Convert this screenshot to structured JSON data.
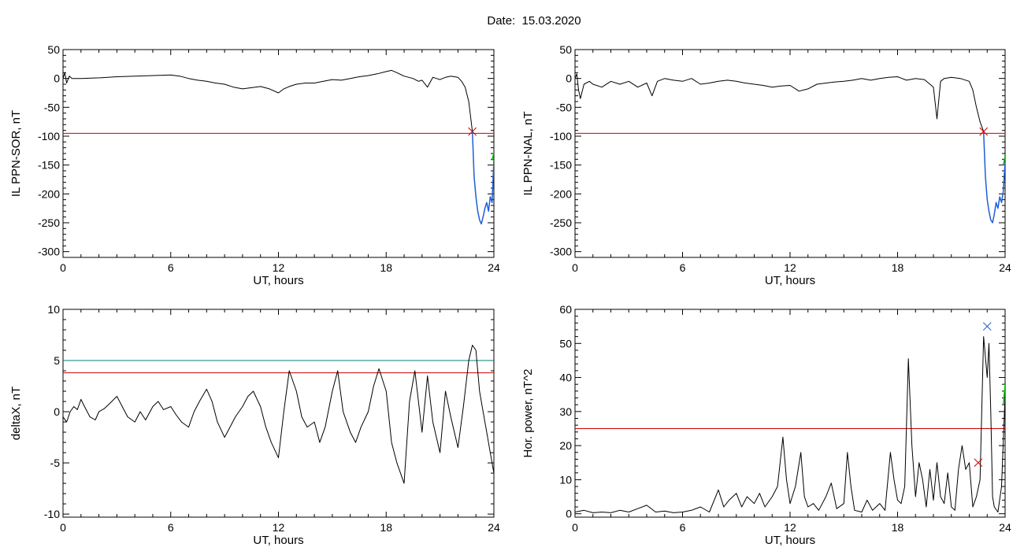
{
  "figure": {
    "title": "Date:  15.03.2020"
  },
  "chart_data": [
    {
      "type": "line",
      "panel": "top-left",
      "xlabel": "UT, hours",
      "ylabel": "IL PPN-SOR, nT",
      "xlim": [
        0,
        24
      ],
      "ylim": [
        -310,
        50
      ],
      "xticks": [
        0,
        6,
        12,
        18,
        24
      ],
      "yticks": [
        50,
        0,
        -50,
        -100,
        -150,
        -200,
        -250,
        -300
      ],
      "threshold": {
        "value": -95,
        "color": "#cc0000"
      },
      "marker": {
        "x": 22.8,
        "y": -92,
        "color": "#cc0000"
      },
      "series": [
        {
          "color": "#000000",
          "x": [
            0,
            0.1,
            0.2,
            0.35,
            0.5,
            1,
            2,
            3,
            4,
            5,
            6,
            6.5,
            7,
            7.5,
            8,
            8.5,
            9,
            9.5,
            10,
            10.5,
            11,
            11.5,
            12,
            12.3,
            12.6,
            13,
            13.5,
            14,
            14.5,
            15,
            15.5,
            16,
            16.5,
            17,
            17.5,
            18,
            18.3,
            18.6,
            19,
            19.5,
            19.8,
            20,
            20.3,
            20.6,
            20.8,
            21,
            21.3,
            21.6,
            22,
            22.2,
            22.4,
            22.6,
            22.8
          ],
          "y": [
            0,
            10,
            -8,
            4,
            0,
            0,
            1,
            3,
            4,
            5,
            6,
            4,
            0,
            -3,
            -5,
            -8,
            -10,
            -15,
            -18,
            -16,
            -14,
            -18,
            -25,
            -18,
            -14,
            -10,
            -8,
            -8,
            -5,
            -2,
            -3,
            0,
            3,
            5,
            8,
            12,
            14,
            10,
            4,
            0,
            -5,
            -3,
            -15,
            2,
            0,
            -2,
            2,
            4,
            2,
            -5,
            -15,
            -40,
            -92
          ]
        },
        {
          "color": "#1f5fd6",
          "x": [
            22.8,
            22.9,
            23.0,
            23.1,
            23.2,
            23.3,
            23.4,
            23.5,
            23.6,
            23.7,
            23.8,
            23.9,
            24.0
          ],
          "y": [
            -92,
            -170,
            -205,
            -230,
            -245,
            -252,
            -240,
            -225,
            -215,
            -230,
            -205,
            -215,
            -140
          ]
        },
        {
          "color": "#00cc00",
          "x": [
            23.9,
            24.0
          ],
          "y": [
            -142,
            -128
          ]
        }
      ]
    },
    {
      "type": "line",
      "panel": "top-right",
      "xlabel": "UT, hours",
      "ylabel": "IL PPN-NAL, nT",
      "xlim": [
        0,
        24
      ],
      "ylim": [
        -310,
        50
      ],
      "xticks": [
        0,
        6,
        12,
        18,
        24
      ],
      "yticks": [
        50,
        0,
        -50,
        -100,
        -150,
        -200,
        -250,
        -300
      ],
      "threshold": {
        "value": -95,
        "color": "#cc0000"
      },
      "marker": {
        "x": 22.8,
        "y": -92,
        "color": "#cc0000"
      },
      "series": [
        {
          "color": "#000000",
          "x": [
            0,
            0.1,
            0.2,
            0.3,
            0.5,
            0.8,
            1,
            1.5,
            2,
            2.5,
            3,
            3.5,
            4,
            4.3,
            4.6,
            5,
            5.5,
            6,
            6.5,
            7,
            7.5,
            8,
            8.5,
            9,
            9.5,
            10,
            10.5,
            11,
            11.5,
            12,
            12.5,
            13,
            13.5,
            14,
            14.5,
            15,
            15.5,
            16,
            16.5,
            17,
            17.5,
            18,
            18.5,
            19,
            19.5,
            20,
            20.2,
            20.4,
            20.6,
            21,
            21.5,
            22,
            22.2,
            22.4,
            22.6,
            22.8
          ],
          "y": [
            0,
            8,
            -20,
            -35,
            -10,
            -5,
            -10,
            -15,
            -5,
            -10,
            -5,
            -15,
            -8,
            -30,
            -5,
            0,
            -3,
            -5,
            0,
            -10,
            -8,
            -5,
            -3,
            -5,
            -8,
            -10,
            -12,
            -15,
            -13,
            -12,
            -22,
            -18,
            -10,
            -8,
            -6,
            -5,
            -3,
            0,
            -3,
            0,
            2,
            3,
            -3,
            0,
            -2,
            -15,
            -70,
            -5,
            0,
            2,
            0,
            -5,
            -20,
            -50,
            -75,
            -92
          ]
        },
        {
          "color": "#1f5fd6",
          "x": [
            22.8,
            22.9,
            23.0,
            23.1,
            23.2,
            23.3,
            23.4,
            23.5,
            23.6,
            23.7,
            23.8,
            23.9,
            24.0
          ],
          "y": [
            -92,
            -170,
            -210,
            -230,
            -245,
            -250,
            -235,
            -215,
            -225,
            -205,
            -215,
            -195,
            -145
          ]
        },
        {
          "color": "#00cc00",
          "x": [
            23.9,
            24.0
          ],
          "y": [
            -150,
            -135
          ]
        }
      ]
    },
    {
      "type": "line",
      "panel": "bottom-left",
      "xlabel": "UT, hours",
      "ylabel": "deltaX, nT",
      "xlim": [
        0,
        24
      ],
      "ylim": [
        -10.3,
        10
      ],
      "xticks": [
        0,
        6,
        12,
        18,
        24
      ],
      "yticks": [
        10,
        5,
        0,
        -5,
        -10
      ],
      "threshold": {
        "value": 3.8,
        "color": "#cc0000"
      },
      "threshold2": {
        "value": 5.0,
        "color": "#008080"
      },
      "series": [
        {
          "color": "#000000",
          "x": [
            0,
            0.2,
            0.4,
            0.6,
            0.8,
            1.0,
            1.2,
            1.5,
            1.8,
            2.0,
            2.3,
            2.6,
            3.0,
            3.3,
            3.6,
            4.0,
            4.3,
            4.6,
            5.0,
            5.3,
            5.6,
            6.0,
            6.3,
            6.6,
            7.0,
            7.3,
            7.6,
            8.0,
            8.3,
            8.6,
            9.0,
            9.3,
            9.6,
            10.0,
            10.3,
            10.6,
            11.0,
            11.3,
            11.6,
            12.0,
            12.3,
            12.6,
            13.0,
            13.3,
            13.6,
            14.0,
            14.3,
            14.6,
            15.0,
            15.3,
            15.6,
            16.0,
            16.3,
            16.6,
            17.0,
            17.3,
            17.6,
            18.0,
            18.3,
            18.6,
            19.0,
            19.3,
            19.6,
            20.0,
            20.3,
            20.6,
            21.0,
            21.3,
            21.6,
            22.0,
            22.3,
            22.6,
            22.8,
            23.0,
            23.2,
            23.4,
            23.6,
            23.8,
            24.0
          ],
          "y": [
            -0.5,
            -1.0,
            0.0,
            0.5,
            0.2,
            1.2,
            0.5,
            -0.5,
            -0.8,
            0.0,
            0.3,
            0.8,
            1.5,
            0.5,
            -0.5,
            -1.0,
            0.0,
            -0.8,
            0.5,
            1.0,
            0.2,
            0.5,
            -0.3,
            -1.0,
            -1.5,
            0.0,
            1.0,
            2.2,
            1.0,
            -1.0,
            -2.5,
            -1.5,
            -0.5,
            0.5,
            1.5,
            2.0,
            0.5,
            -1.5,
            -3.0,
            -4.5,
            0.0,
            4.0,
            2.0,
            -0.5,
            -1.5,
            -1.0,
            -3.0,
            -1.5,
            2.0,
            4.0,
            0.0,
            -2.0,
            -3.0,
            -1.5,
            0.0,
            2.5,
            4.2,
            2.0,
            -3.0,
            -5.0,
            -7.0,
            1.0,
            4.0,
            -2.0,
            3.5,
            -1.0,
            -4.0,
            2.0,
            -0.5,
            -3.5,
            0.5,
            5.0,
            6.5,
            6.0,
            2.0,
            0.0,
            -2.0,
            -4.0,
            -6.0
          ]
        }
      ]
    },
    {
      "type": "line",
      "panel": "bottom-right",
      "xlabel": "UT, hours",
      "ylabel": "Hor. power, nT^2",
      "xlim": [
        0,
        24
      ],
      "ylim": [
        -1,
        60
      ],
      "xticks": [
        0,
        6,
        12,
        18,
        24
      ],
      "yticks": [
        60,
        50,
        40,
        30,
        20,
        10,
        0
      ],
      "threshold": {
        "value": 25,
        "color": "#cc0000"
      },
      "marker": {
        "x": 22.5,
        "y": 15,
        "color": "#cc0000"
      },
      "marker2": {
        "x": 23.0,
        "y": 55,
        "color": "#1f5fd6"
      },
      "series": [
        {
          "color": "#000000",
          "x": [
            0,
            0.5,
            1,
            1.5,
            2,
            2.5,
            3,
            3.5,
            4,
            4.5,
            5,
            5.5,
            6,
            6.5,
            7,
            7.5,
            8,
            8.3,
            8.6,
            9,
            9.3,
            9.6,
            10,
            10.3,
            10.6,
            11,
            11.3,
            11.6,
            11.8,
            12,
            12.3,
            12.6,
            12.8,
            13,
            13.3,
            13.6,
            14,
            14.3,
            14.6,
            15,
            15.2,
            15.4,
            15.6,
            16,
            16.3,
            16.6,
            17,
            17.3,
            17.6,
            17.8,
            18,
            18.2,
            18.4,
            18.6,
            18.8,
            19.0,
            19.2,
            19.4,
            19.6,
            19.8,
            20.0,
            20.2,
            20.4,
            20.6,
            20.8,
            21.0,
            21.2,
            21.4,
            21.6,
            21.8,
            22.0,
            22.2,
            22.4,
            22.6,
            22.8,
            23.0,
            23.1,
            23.2,
            23.3,
            23.4,
            23.6,
            23.8,
            24.0
          ],
          "y": [
            0.5,
            1.0,
            0.3,
            0.5,
            0.3,
            1.0,
            0.5,
            1.5,
            2.5,
            0.5,
            0.8,
            0.3,
            0.5,
            1.0,
            2.0,
            0.5,
            7.0,
            2.0,
            4.0,
            6.0,
            2.0,
            5.0,
            3.0,
            6.0,
            2.0,
            5.0,
            8.0,
            22.5,
            10.0,
            3.0,
            8.0,
            18.0,
            5.0,
            2.0,
            3.0,
            1.0,
            5.0,
            9.0,
            1.5,
            3.0,
            18.0,
            8.0,
            1.0,
            0.5,
            4.0,
            1.0,
            3.0,
            1.0,
            18.0,
            10.0,
            4.0,
            3.0,
            8.0,
            45.5,
            20.0,
            5.0,
            15.0,
            10.0,
            2.0,
            13.0,
            4.0,
            15.0,
            5.0,
            3.0,
            12.0,
            2.0,
            1.0,
            13.0,
            20.0,
            13.0,
            15.0,
            2.0,
            5.0,
            10.0,
            52.0,
            40.0,
            50.0,
            30.0,
            5.0,
            2.0,
            0.5,
            8.0,
            35.0
          ]
        },
        {
          "color": "#00cc00",
          "x": [
            23.9,
            24.0
          ],
          "y": [
            32,
            38
          ]
        }
      ]
    }
  ]
}
